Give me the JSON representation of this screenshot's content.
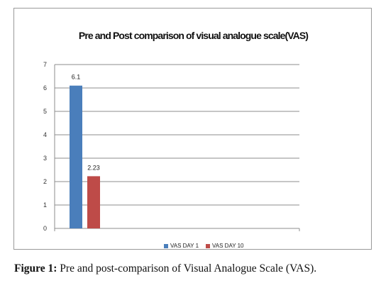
{
  "chart_data": {
    "type": "bar",
    "title": "Pre and Post comparison of visual analogue scale(VAS)",
    "categories": [
      ""
    ],
    "series": [
      {
        "name": "VAS DAY 1",
        "values": [
          6.1
        ],
        "color": "#4a7ebb",
        "label": "6.1"
      },
      {
        "name": "VAS DAY 10",
        "values": [
          2.23
        ],
        "color": "#be4b48",
        "label": "2.23"
      }
    ],
    "ylim": [
      0,
      7
    ],
    "yticks": [
      "0",
      "1",
      "2",
      "3",
      "4",
      "5",
      "6",
      "7"
    ],
    "grid": true,
    "legend": "bottom"
  },
  "caption": {
    "label": "Figure 1:",
    "text": " Pre and post-comparison of Visual Analogue Scale (VAS)."
  }
}
